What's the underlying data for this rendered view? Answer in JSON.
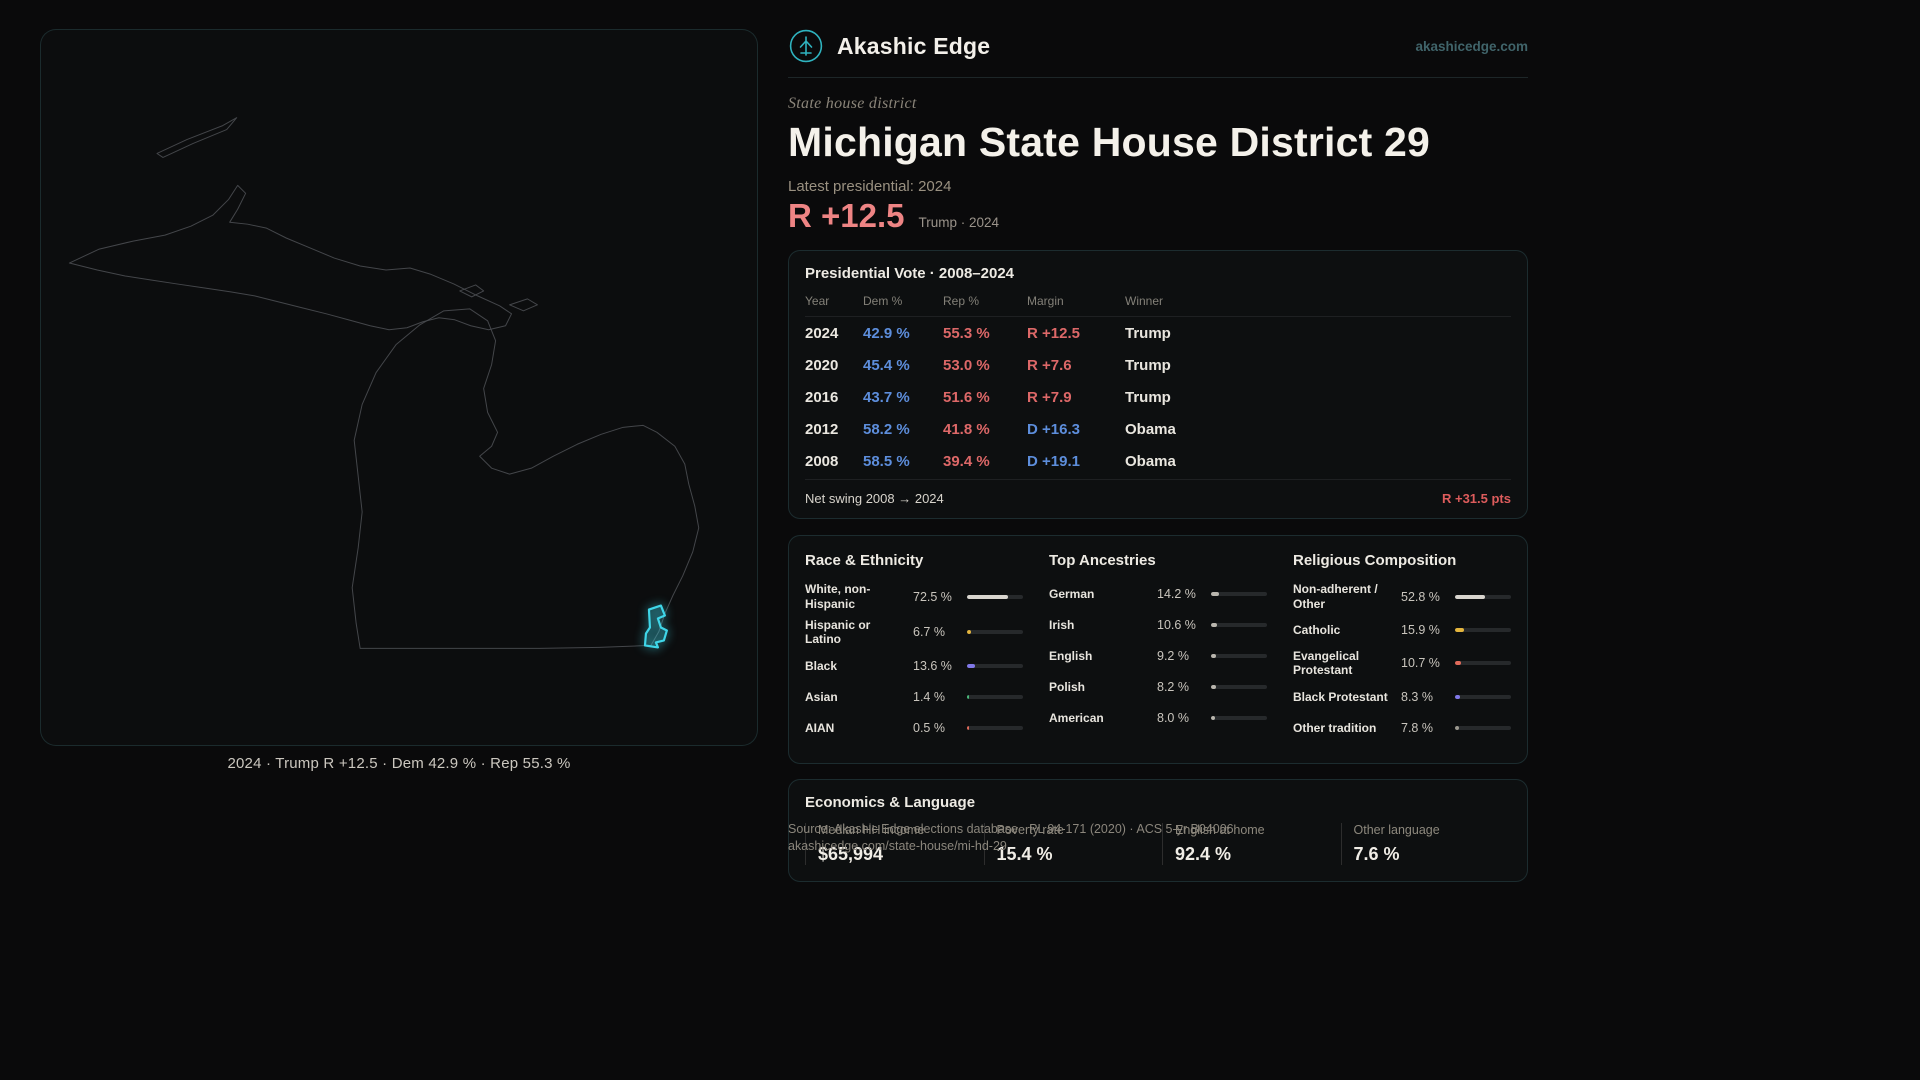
{
  "accent": {
    "teal": "#2fb3bf",
    "cyan": "#3fd6e8",
    "dem_blue": "#5d8edc",
    "rep_red": "#dd6868",
    "salmon": "#ee8484"
  },
  "header": {
    "brand": "Akashic Edge",
    "site": "akashicedge.com",
    "logo_icon": "akashic-edge-logo"
  },
  "hero": {
    "kicker": "State house district",
    "title": "Michigan State House District 29",
    "latest_label": "Latest presidential: 2024",
    "margin_value": "R +12.5",
    "margin_note": "Trump · 2024"
  },
  "map": {
    "state": "Michigan",
    "highlight": "district-29",
    "caption": "2024 · Trump R +12.5 · Dem 42.9 % · Rep 55.3 %"
  },
  "presidential": {
    "title": "Presidential Vote · 2008–2024",
    "columns": [
      "Year",
      "Dem %",
      "Rep %",
      "Margin",
      "Winner"
    ],
    "rows": [
      {
        "year": "2024",
        "dem": "42.9 %",
        "rep": "55.3 %",
        "margin": "R +12.5",
        "margin_party": "R",
        "winner": "Trump"
      },
      {
        "year": "2020",
        "dem": "45.4 %",
        "rep": "53.0 %",
        "margin": "R +7.6",
        "margin_party": "R",
        "winner": "Trump"
      },
      {
        "year": "2016",
        "dem": "43.7 %",
        "rep": "51.6 %",
        "margin": "R +7.9",
        "margin_party": "R",
        "winner": "Trump"
      },
      {
        "year": "2012",
        "dem": "58.2 %",
        "rep": "41.8 %",
        "margin": "D +16.3",
        "margin_party": "D",
        "winner": "Obama"
      },
      {
        "year": "2008",
        "dem": "58.5 %",
        "rep": "39.4 %",
        "margin": "D +19.1",
        "margin_party": "D",
        "winner": "Obama"
      }
    ],
    "net_swing_label": "Net swing 2008 → 2024",
    "net_swing_value": "R +31.5 pts"
  },
  "demographics": {
    "race": {
      "title": "Race & Ethnicity",
      "rows": [
        {
          "label": "White, non-Hispanic",
          "value": "72.5 %",
          "pct": 72.5,
          "color": "#d8d5ce"
        },
        {
          "label": "Hispanic or Latino",
          "value": "6.7 %",
          "pct": 6.7,
          "color": "#e3b53e"
        },
        {
          "label": "Black",
          "value": "13.6 %",
          "pct": 13.6,
          "color": "#8078e8"
        },
        {
          "label": "Asian",
          "value": "1.4 %",
          "pct": 1.4,
          "color": "#49b97a"
        },
        {
          "label": "AIAN",
          "value": "0.5 %",
          "pct": 0.5,
          "color": "#e06a5a"
        }
      ]
    },
    "ancestries": {
      "title": "Top Ancestries",
      "rows": [
        {
          "label": "German",
          "value": "14.2 %",
          "pct": 14.2,
          "color": "#b9b6ae"
        },
        {
          "label": "Irish",
          "value": "10.6 %",
          "pct": 10.6,
          "color": "#b9b6ae"
        },
        {
          "label": "English",
          "value": "9.2 %",
          "pct": 9.2,
          "color": "#b9b6ae"
        },
        {
          "label": "Polish",
          "value": "8.2 %",
          "pct": 8.2,
          "color": "#b9b6ae"
        },
        {
          "label": "American",
          "value": "8.0 %",
          "pct": 8.0,
          "color": "#b9b6ae"
        }
      ]
    },
    "religion": {
      "title": "Religious Composition",
      "rows": [
        {
          "label": "Non-adherent / Other",
          "value": "52.8 %",
          "pct": 52.8,
          "color": "#d8d5ce"
        },
        {
          "label": "Catholic",
          "value": "15.9 %",
          "pct": 15.9,
          "color": "#e3b53e"
        },
        {
          "label": "Evangelical Protestant",
          "value": "10.7 %",
          "pct": 10.7,
          "color": "#e06a5a"
        },
        {
          "label": "Black Protestant",
          "value": "8.3 %",
          "pct": 8.3,
          "color": "#8078e8"
        },
        {
          "label": "Other tradition",
          "value": "7.8 %",
          "pct": 7.8,
          "color": "#9b988f"
        }
      ]
    }
  },
  "economics": {
    "title": "Economics & Language",
    "stats": [
      {
        "label": "Median HH income",
        "value": "$65,994"
      },
      {
        "label": "Poverty rate",
        "value": "15.4 %"
      },
      {
        "label": "English at home",
        "value": "92.4 %"
      },
      {
        "label": "Other language",
        "value": "7.6 %"
      }
    ]
  },
  "footer": {
    "source": "Source: Akashic Edge elections database · PL 94-171 (2020) · ACS 5-yr B04006",
    "permalink": "akashicedge.com/state-house/mi-hd-29"
  }
}
